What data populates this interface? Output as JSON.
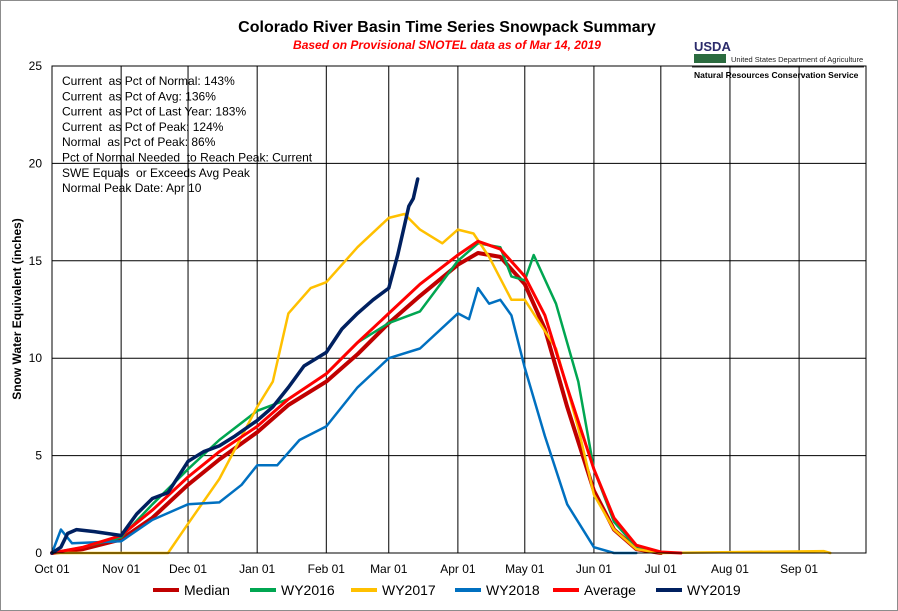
{
  "header": {
    "title": "Colorado River Basin Time Series Snowpack Summary",
    "subtitle": "Based on Provisional SNOTEL data as of Mar 14, 2019"
  },
  "logo": {
    "agency_short": "USDA",
    "department": "United States Department of Agriculture",
    "service": "Natural Resources Conservation Service"
  },
  "stats": [
    "Current  as Pct of Normal: 143%",
    "Current  as Pct of Avg: 136%",
    "Current  as Pct of Last Year: 183%",
    "Current  as Pct of Peak: 124%",
    "Normal  as Pct of Peak: 86%",
    "Pct of Normal Needed  to Reach Peak: Current",
    "SWE Equals  or Exceeds Avg Peak",
    "Normal Peak Date: Apr 10"
  ],
  "chart_data": {
    "type": "line",
    "title": "Colorado River Basin Time Series Snowpack Summary",
    "subtitle": "Based on Provisional SNOTEL data as of Mar 14, 2019",
    "ylabel": "Snow Water Equivalent (inches)",
    "xlabel": "",
    "ylim": [
      0,
      25
    ],
    "yticks": [
      0,
      5,
      10,
      15,
      20,
      25
    ],
    "x_ticks": [
      "Oct 01",
      "Nov 01",
      "Dec 01",
      "Jan 01",
      "Feb 01",
      "Mar 01",
      "Apr 01",
      "May 01",
      "Jun 01",
      "Jul 01",
      "Aug 01",
      "Sep 01"
    ],
    "grid": true,
    "legend_position": "bottom",
    "series": [
      {
        "name": "Median",
        "color": "#c00000",
        "width": 4,
        "x": [
          "Oct 01",
          "Oct 15",
          "Nov 01",
          "Nov 15",
          "Dec 01",
          "Dec 15",
          "Jan 01",
          "Jan 15",
          "Feb 01",
          "Feb 15",
          "Mar 01",
          "Mar 15",
          "Apr 01",
          "Apr 10",
          "Apr 20",
          "May 01",
          "May 10",
          "May 20",
          "Jun 01",
          "Jun 10",
          "Jun 20",
          "Jul 01"
        ],
        "y": [
          0,
          0.2,
          0.7,
          1.8,
          3.5,
          4.8,
          6.2,
          7.6,
          8.8,
          10.2,
          11.8,
          13.2,
          14.8,
          15.4,
          15.2,
          13.8,
          11.5,
          7.5,
          3.2,
          1.2,
          0.2,
          0
        ]
      },
      {
        "name": "WY2016",
        "color": "#00a651",
        "width": 2.5,
        "x": [
          "Oct 01",
          "Oct 15",
          "Nov 01",
          "Nov 15",
          "Dec 01",
          "Dec 15",
          "Jan 01",
          "Jan 15",
          "Feb 01",
          "Feb 15",
          "Mar 01",
          "Mar 15",
          "Apr 01",
          "Apr 10",
          "Apr 20",
          "Apr 25",
          "May 01",
          "May 05",
          "May 15",
          "May 25",
          "Jun 01",
          "Jun 10",
          "Jun 20",
          "Jul 01"
        ],
        "y": [
          0,
          0.3,
          0.8,
          2.5,
          4.3,
          5.8,
          7.3,
          7.9,
          9.2,
          10.8,
          11.8,
          12.4,
          15.0,
          15.9,
          15.7,
          14.2,
          14.0,
          15.3,
          12.8,
          8.8,
          4.3,
          1.6,
          0.3,
          0
        ]
      },
      {
        "name": "WY2017",
        "color": "#ffc000",
        "width": 2.5,
        "x": [
          "Oct 01",
          "Nov 01",
          "Nov 22",
          "Dec 01",
          "Dec 15",
          "Jan 01",
          "Jan 08",
          "Jan 15",
          "Jan 25",
          "Feb 01",
          "Feb 15",
          "Mar 01",
          "Mar 08",
          "Mar 15",
          "Mar 25",
          "Apr 01",
          "Apr 08",
          "Apr 15",
          "Apr 25",
          "May 01",
          "May 15",
          "May 25",
          "Jun 01",
          "Jun 10",
          "Jun 20",
          "Jul 01",
          "Sep 12",
          "Sep 15"
        ],
        "y": [
          0,
          0,
          0,
          1.5,
          3.8,
          7.5,
          8.8,
          12.3,
          13.6,
          13.9,
          15.7,
          17.2,
          17.4,
          16.6,
          15.9,
          16.6,
          16.4,
          15.2,
          13.0,
          13.0,
          10.5,
          6.4,
          3.0,
          1.2,
          0.2,
          0,
          0.1,
          0
        ]
      },
      {
        "name": "WY2018",
        "color": "#0070c0",
        "width": 2.5,
        "x": [
          "Oct 01",
          "Oct 05",
          "Oct 10",
          "Nov 01",
          "Nov 15",
          "Dec 01",
          "Dec 15",
          "Dec 25",
          "Jan 01",
          "Jan 10",
          "Jan 20",
          "Feb 01",
          "Feb 15",
          "Mar 01",
          "Mar 15",
          "Apr 01",
          "Apr 06",
          "Apr 10",
          "Apr 15",
          "Apr 20",
          "Apr 25",
          "May 01",
          "May 10",
          "May 20",
          "Jun 01",
          "Jun 10",
          "Jun 20"
        ],
        "y": [
          0,
          1.2,
          0.5,
          0.6,
          1.7,
          2.5,
          2.6,
          3.5,
          4.5,
          4.5,
          5.8,
          6.5,
          8.5,
          10.0,
          10.5,
          12.3,
          12.0,
          13.6,
          12.8,
          13.0,
          12.2,
          9.5,
          6.0,
          2.5,
          0.3,
          0,
          0
        ]
      },
      {
        "name": "Average",
        "color": "#ff0000",
        "width": 3,
        "x": [
          "Oct 01",
          "Oct 15",
          "Nov 01",
          "Nov 15",
          "Dec 01",
          "Dec 15",
          "Jan 01",
          "Jan 15",
          "Feb 01",
          "Feb 15",
          "Mar 01",
          "Mar 15",
          "Apr 01",
          "Apr 10",
          "Apr 20",
          "May 01",
          "May 10",
          "May 20",
          "Jun 01",
          "Jun 10",
          "Jun 20",
          "Jul 01",
          "Jul 10"
        ],
        "y": [
          0,
          0.3,
          0.9,
          2.2,
          3.9,
          5.2,
          6.5,
          7.9,
          9.2,
          10.8,
          12.3,
          13.8,
          15.3,
          16.0,
          15.6,
          14.2,
          12.2,
          8.5,
          4.3,
          1.8,
          0.4,
          0.05,
          0
        ]
      },
      {
        "name": "WY2019",
        "color": "#002060",
        "width": 3.5,
        "x": [
          "Oct 01",
          "Oct 05",
          "Oct 08",
          "Oct 12",
          "Oct 20",
          "Nov 01",
          "Nov 08",
          "Nov 15",
          "Nov 22",
          "Dec 01",
          "Dec 08",
          "Dec 15",
          "Dec 22",
          "Jan 01",
          "Jan 08",
          "Jan 15",
          "Jan 22",
          "Feb 01",
          "Feb 08",
          "Feb 15",
          "Feb 22",
          "Mar 01",
          "Mar 05",
          "Mar 08",
          "Mar 10",
          "Mar 12",
          "Mar 14"
        ],
        "y": [
          0,
          0.3,
          1.0,
          1.2,
          1.1,
          0.9,
          2.0,
          2.8,
          3.1,
          4.7,
          5.2,
          5.5,
          6.0,
          6.8,
          7.5,
          8.5,
          9.6,
          10.3,
          11.5,
          12.3,
          13.0,
          13.6,
          15.3,
          16.8,
          17.8,
          18.2,
          19.2
        ]
      }
    ]
  },
  "legend": [
    {
      "name": "Median",
      "color": "#c00000"
    },
    {
      "name": "WY2016",
      "color": "#00a651"
    },
    {
      "name": "WY2017",
      "color": "#ffc000"
    },
    {
      "name": "WY2018",
      "color": "#0070c0"
    },
    {
      "name": "Average",
      "color": "#ff0000"
    },
    {
      "name": "WY2019",
      "color": "#002060"
    }
  ]
}
